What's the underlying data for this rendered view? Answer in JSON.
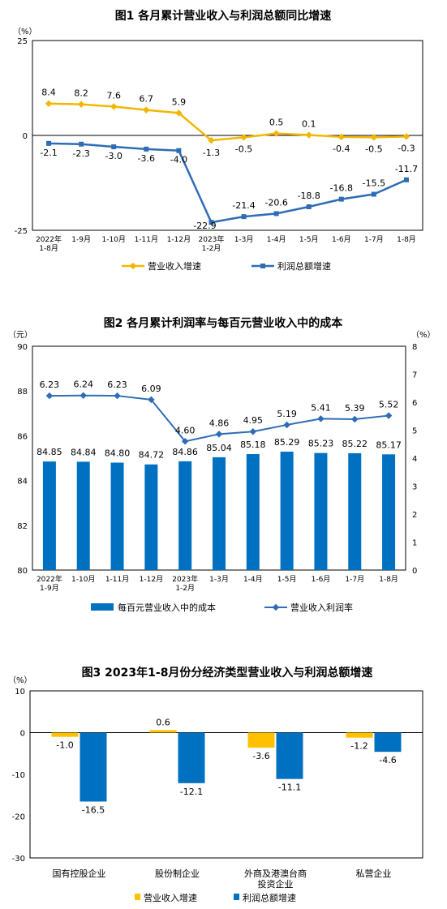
{
  "chart_data": [
    {
      "type": "line",
      "title": "图1  各月累计营业收入与利润总额同比增速",
      "yunit": "（%）",
      "ylim": [
        -25,
        25
      ],
      "yticks": [
        "25",
        "0",
        "-25"
      ],
      "categories": [
        [
          "2022年",
          "1-8月"
        ],
        [
          "1-9月"
        ],
        [
          "1-10月"
        ],
        [
          "1-11月"
        ],
        [
          "1-12月"
        ],
        [
          "2023年",
          "1-2月"
        ],
        [
          "1-3月"
        ],
        [
          "1-4月"
        ],
        [
          "1-5月"
        ],
        [
          "1-6月"
        ],
        [
          "1-7月"
        ],
        [
          "1-8月"
        ]
      ],
      "series": [
        {
          "name": "营业收入增速",
          "color": "#F2B705",
          "marker": "diamond",
          "values": [
            8.4,
            8.2,
            7.6,
            6.7,
            5.9,
            -1.3,
            -0.5,
            0.5,
            0.1,
            -0.4,
            -0.5,
            -0.3
          ],
          "labels": [
            "8.4",
            "8.2",
            "7.6",
            "6.7",
            "5.9",
            "-1.3",
            "-0.5",
            "0.5",
            "0.1",
            "-0.4",
            "-0.5",
            "-0.3"
          ]
        },
        {
          "name": "利润总额增速",
          "color": "#2E6DB4",
          "marker": "square",
          "values": [
            -2.1,
            -2.3,
            -3.0,
            -3.6,
            -4.0,
            -22.9,
            -21.4,
            -20.6,
            -18.8,
            -16.8,
            -15.5,
            -11.7
          ],
          "labels": [
            "-2.1",
            "-2.3",
            "-3.0",
            "-3.6",
            "-4.0",
            "-22.9",
            "-21.4",
            "-20.6",
            "-18.8",
            "-16.8",
            "-15.5",
            "-11.7"
          ]
        }
      ]
    },
    {
      "type": "bar+line",
      "title": "图2  各月累计利润率与每百元营业收入中的成本",
      "yunit_left": "（元）",
      "yunit_right": "（%）",
      "ylim_left": [
        80,
        90
      ],
      "ylim_right": [
        0,
        8
      ],
      "yticks_left": [
        "90",
        "88",
        "86",
        "84",
        "82",
        "80"
      ],
      "yticks_right": [
        "8",
        "7",
        "6",
        "5",
        "4",
        "3",
        "2",
        "1",
        "0"
      ],
      "categories": [
        [
          "2022年",
          "1-9月"
        ],
        [
          "1-10月"
        ],
        [
          "1-11月"
        ],
        [
          "1-12月"
        ],
        [
          "2023年",
          "1-2月"
        ],
        [
          "1-3月"
        ],
        [
          "1-4月"
        ],
        [
          "1-5月"
        ],
        [
          "1-6月"
        ],
        [
          "1-7月"
        ],
        [
          "1-8月"
        ]
      ],
      "bars": {
        "name": "每百元营业收入中的成本",
        "color": "#0070C0",
        "values": [
          84.85,
          84.84,
          84.8,
          84.72,
          84.86,
          85.04,
          85.18,
          85.29,
          85.23,
          85.22,
          85.17
        ],
        "labels": [
          "84.85",
          "84.84",
          "84.80",
          "84.72",
          "84.86",
          "85.04",
          "85.18",
          "85.29",
          "85.23",
          "85.22",
          "85.17"
        ]
      },
      "line": {
        "name": "营业收入利润率",
        "color": "#2E6DB4",
        "values": [
          6.23,
          6.24,
          6.23,
          6.09,
          4.6,
          4.86,
          4.95,
          5.19,
          5.41,
          5.39,
          5.52
        ],
        "labels": [
          "6.23",
          "6.24",
          "6.23",
          "6.09",
          "4.60",
          "4.86",
          "4.95",
          "5.19",
          "5.41",
          "5.39",
          "5.52"
        ]
      }
    },
    {
      "type": "bar",
      "title": "图3  2023年1-8月份分经济类型营业收入与利润总额增速",
      "yunit": "（%）",
      "ylim": [
        -30,
        10
      ],
      "yticks": [
        "10",
        "0",
        "-10",
        "-20",
        "-30"
      ],
      "categories": [
        [
          "国有控股企业"
        ],
        [
          "股份制企业"
        ],
        [
          "外商及港澳台商",
          "投资企业"
        ],
        [
          "私营企业"
        ]
      ],
      "series": [
        {
          "name": "营业收入增速",
          "color": "#FFC000",
          "values": [
            -1.0,
            0.6,
            -3.6,
            -1.2
          ],
          "labels": [
            "-1.0",
            "0.6",
            "-3.6",
            "-1.2"
          ]
        },
        {
          "name": "利润总额增速",
          "color": "#0070C0",
          "values": [
            -16.5,
            -12.1,
            -11.1,
            -4.6
          ],
          "labels": [
            "-16.5",
            "-12.1",
            "-11.1",
            "-4.6"
          ]
        }
      ]
    }
  ]
}
